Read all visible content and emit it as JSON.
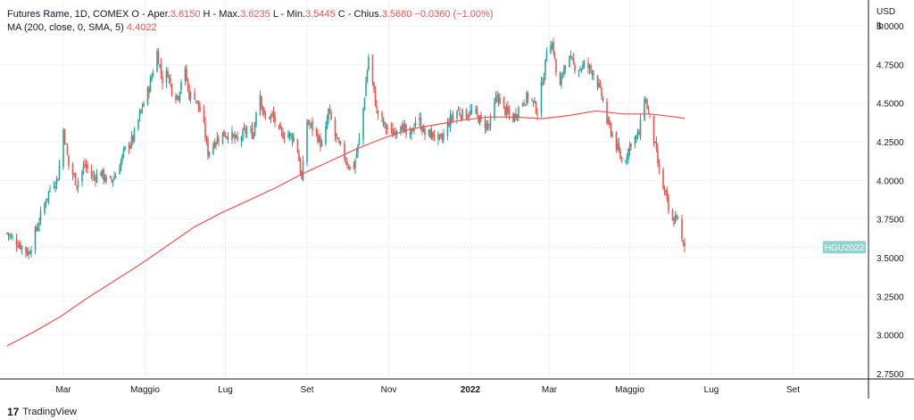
{
  "legend": {
    "symbol": "Futures Rame, 1D, COMEX",
    "o_label": "O - Aper.",
    "o_value": "3.6150",
    "h_label": "H - Max.",
    "h_value": "3.6235",
    "l_label": "L - Min.",
    "l_value": "3.5445",
    "c_label": "C - Chius.",
    "c_value": "3.5680",
    "change": "−0.0360 (−1.00%)",
    "ma_label": "MA (200, close, 0, SMA, 5)",
    "ma_value": "4.4022"
  },
  "axis_unit": {
    "currency": "USD",
    "unit": "lb"
  },
  "branding": {
    "logo_text": "TradingView"
  },
  "colors": {
    "up": "#26a69a",
    "down": "#ef5350",
    "ma": "#ef5350",
    "grid": "#f0f3fa",
    "axis": "#131722",
    "price_tag": "#8fd4cc"
  },
  "chart_data": {
    "type": "candlestick",
    "symbol": "HGU2022",
    "last_price": 3.568,
    "last_price_label": "HGU2022",
    "y_ticks": [
      "5.0000",
      "4.7500",
      "4.5000",
      "4.2500",
      "4.0000",
      "3.7500",
      "3.5000",
      "3.2500",
      "3.0000",
      "2.7500"
    ],
    "ylim": [
      2.72,
      5.1
    ],
    "x_tick_labels": [
      "Mar",
      "Maggio",
      "Lug",
      "Set",
      "Nov",
      "2022",
      "Mar",
      "Maggio",
      "Lug",
      "Set"
    ],
    "x_tick_bold": [
      false,
      false,
      false,
      false,
      false,
      true,
      false,
      false,
      false,
      false
    ],
    "x_tick_days": [
      42,
      103,
      163,
      224,
      285,
      346,
      405,
      465,
      526,
      587
    ],
    "close_series": [
      [
        0,
        3.66
      ],
      [
        4,
        3.62
      ],
      [
        10,
        3.58
      ],
      [
        16,
        3.53
      ],
      [
        20,
        3.63
      ],
      [
        26,
        3.8
      ],
      [
        32,
        3.95
      ],
      [
        38,
        4.02
      ],
      [
        42,
        4.33
      ],
      [
        46,
        4.1
      ],
      [
        52,
        3.98
      ],
      [
        58,
        4.1
      ],
      [
        64,
        4.02
      ],
      [
        70,
        4.05
      ],
      [
        76,
        3.98
      ],
      [
        82,
        4.05
      ],
      [
        88,
        4.2
      ],
      [
        94,
        4.27
      ],
      [
        100,
        4.45
      ],
      [
        106,
        4.6
      ],
      [
        112,
        4.83
      ],
      [
        116,
        4.65
      ],
      [
        120,
        4.7
      ],
      [
        124,
        4.55
      ],
      [
        128,
        4.55
      ],
      [
        132,
        4.75
      ],
      [
        136,
        4.55
      ],
      [
        140,
        4.55
      ],
      [
        146,
        4.4
      ],
      [
        150,
        4.18
      ],
      [
        154,
        4.24
      ],
      [
        160,
        4.3
      ],
      [
        166,
        4.3
      ],
      [
        172,
        4.25
      ],
      [
        178,
        4.32
      ],
      [
        184,
        4.3
      ],
      [
        188,
        4.62
      ],
      [
        192,
        4.4
      ],
      [
        198,
        4.42
      ],
      [
        204,
        4.3
      ],
      [
        210,
        4.3
      ],
      [
        216,
        4.26
      ],
      [
        220,
        4.0
      ],
      [
        224,
        4.38
      ],
      [
        230,
        4.32
      ],
      [
        236,
        4.2
      ],
      [
        240,
        4.45
      ],
      [
        246,
        4.26
      ],
      [
        252,
        4.15
      ],
      [
        258,
        4.05
      ],
      [
        264,
        4.3
      ],
      [
        270,
        4.8
      ],
      [
        276,
        4.45
      ],
      [
        282,
        4.35
      ],
      [
        288,
        4.3
      ],
      [
        294,
        4.38
      ],
      [
        300,
        4.25
      ],
      [
        306,
        4.42
      ],
      [
        312,
        4.3
      ],
      [
        318,
        4.3
      ],
      [
        324,
        4.25
      ],
      [
        330,
        4.38
      ],
      [
        336,
        4.45
      ],
      [
        342,
        4.42
      ],
      [
        348,
        4.45
      ],
      [
        354,
        4.38
      ],
      [
        360,
        4.35
      ],
      [
        366,
        4.55
      ],
      [
        372,
        4.45
      ],
      [
        378,
        4.4
      ],
      [
        384,
        4.5
      ],
      [
        390,
        4.55
      ],
      [
        396,
        4.45
      ],
      [
        402,
        4.75
      ],
      [
        404,
        4.95
      ],
      [
        408,
        4.85
      ],
      [
        412,
        4.55
      ],
      [
        416,
        4.75
      ],
      [
        420,
        4.78
      ],
      [
        426,
        4.72
      ],
      [
        432,
        4.75
      ],
      [
        438,
        4.7
      ],
      [
        444,
        4.55
      ],
      [
        448,
        4.38
      ],
      [
        452,
        4.3
      ],
      [
        456,
        4.2
      ],
      [
        460,
        4.1
      ],
      [
        466,
        4.25
      ],
      [
        472,
        4.3
      ],
      [
        476,
        4.55
      ],
      [
        480,
        4.4
      ],
      [
        484,
        4.22
      ],
      [
        488,
        4.0
      ],
      [
        492,
        3.9
      ],
      [
        496,
        3.7
      ],
      [
        500,
        3.78
      ],
      [
        504,
        3.6
      ],
      [
        506,
        3.568
      ]
    ],
    "ma_series": [
      [
        0,
        2.93
      ],
      [
        20,
        3.02
      ],
      [
        40,
        3.12
      ],
      [
        60,
        3.24
      ],
      [
        80,
        3.35
      ],
      [
        100,
        3.46
      ],
      [
        120,
        3.58
      ],
      [
        140,
        3.7
      ],
      [
        160,
        3.79
      ],
      [
        180,
        3.87
      ],
      [
        200,
        3.95
      ],
      [
        220,
        4.04
      ],
      [
        240,
        4.12
      ],
      [
        260,
        4.2
      ],
      [
        280,
        4.27
      ],
      [
        300,
        4.33
      ],
      [
        320,
        4.36
      ],
      [
        340,
        4.39
      ],
      [
        360,
        4.41
      ],
      [
        380,
        4.41
      ],
      [
        400,
        4.4
      ],
      [
        420,
        4.42
      ],
      [
        440,
        4.45
      ],
      [
        460,
        4.43
      ],
      [
        480,
        4.43
      ],
      [
        500,
        4.41
      ],
      [
        506,
        4.4
      ]
    ],
    "grid": true
  }
}
